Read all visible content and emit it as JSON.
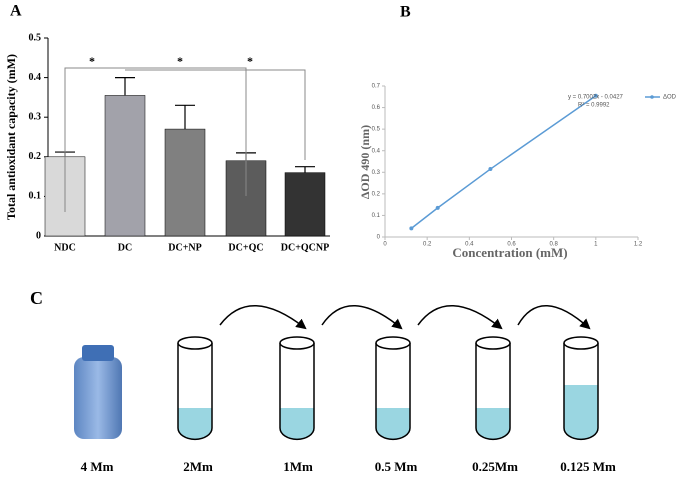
{
  "chart_data": [
    {
      "type": "bar",
      "panel": "A",
      "ylabel": "Total antioxidant capacity (mM)",
      "categories": [
        "NDC",
        "DC",
        "DC+NP",
        "DC+QC",
        "DC+QCNP"
      ],
      "values": [
        0.2,
        0.355,
        0.27,
        0.19,
        0.16
      ],
      "errors": [
        0.012,
        0.045,
        0.06,
        0.02,
        0.015
      ],
      "colors": [
        "#d9d9d9",
        "#a2a2aa",
        "#808080",
        "#5c5c5c",
        "#333333"
      ],
      "ylim": [
        0,
        0.5
      ],
      "yticks": [
        0,
        0.1,
        0.2,
        0.3,
        0.4,
        0.5
      ],
      "annotations": [
        "*",
        "*",
        "*"
      ]
    },
    {
      "type": "line",
      "panel": "B",
      "xlabel": "Concentration (mM)",
      "ylabel": "ΔOD 490 (nm)",
      "x": [
        0.125,
        0.25,
        0.5,
        1
      ],
      "series": [
        {
          "name": "ΔOD",
          "color": "#5b9bd5",
          "values": [
            0.04,
            0.135,
            0.315,
            0.655
          ]
        }
      ],
      "xlim": [
        0,
        1.2
      ],
      "xticks": [
        0,
        0.2,
        0.4,
        0.6,
        0.8,
        1,
        1.2
      ],
      "ylim": [
        0,
        0.7
      ],
      "yticks": [
        0,
        0.1,
        0.2,
        0.3,
        0.4,
        0.5,
        0.6,
        0.7
      ],
      "legend": "right",
      "annotations": [
        "y = 0.7002x - 0.0427",
        "R² = 0.9992"
      ]
    }
  ],
  "panel_c": {
    "label": "C",
    "labels": [
      "4 Mm",
      "2Mm",
      "1Mm",
      "0.5 Mm",
      "0.25Mm",
      "0.125 Mm"
    ]
  }
}
